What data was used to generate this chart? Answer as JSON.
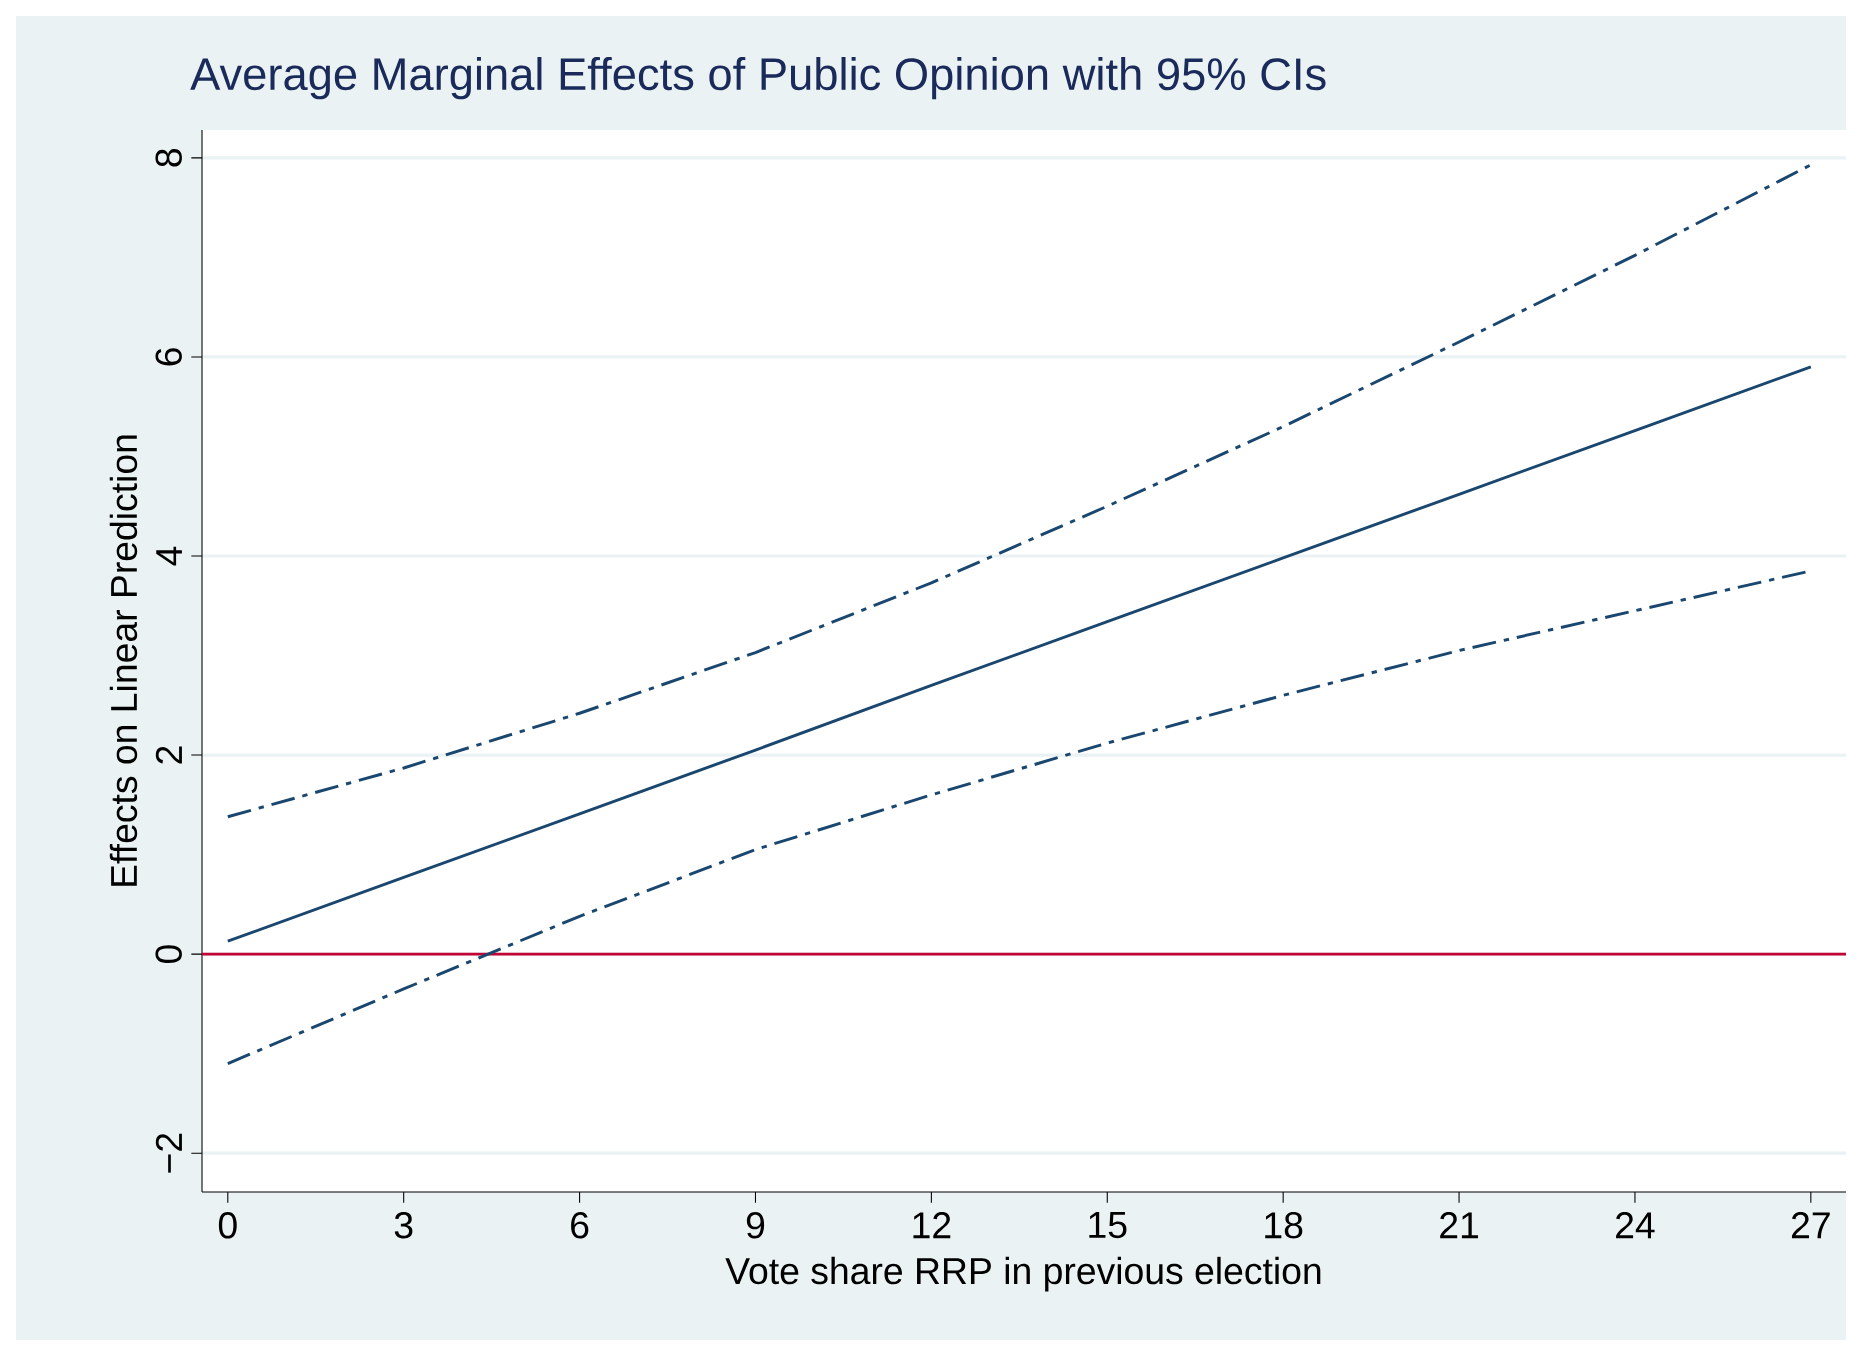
{
  "chart_data": {
    "type": "line",
    "title": "Average Marginal Effects of Public Opinion with 95% CIs",
    "xlabel": "Vote share RRP in previous election",
    "ylabel": "Effects on Linear Prediction",
    "x": [
      0,
      3,
      6,
      9,
      12,
      15,
      18,
      21,
      24,
      27
    ],
    "series": [
      {
        "color": "#1a476f",
        "line_style": "solid",
        "values": [
          0.13,
          0.77,
          1.41,
          2.05,
          2.7,
          3.34,
          3.98,
          4.62,
          5.26,
          5.9
        ]
      },
      {
        "color": "#1a476f",
        "line_style": "dashdot",
        "values": [
          1.38,
          1.87,
          2.42,
          3.03,
          3.73,
          4.5,
          5.3,
          6.15,
          7.02,
          7.93
        ]
      },
      {
        "color": "#1a476f",
        "line_style": "dashdot",
        "values": [
          -1.1,
          -0.35,
          0.38,
          1.05,
          1.6,
          2.12,
          2.6,
          3.05,
          3.45,
          3.85
        ]
      }
    ],
    "xlim": [
      -0.44,
      27.6
    ],
    "ylim": [
      -2.39,
      8.28
    ],
    "xticks": [
      0,
      3,
      6,
      9,
      12,
      15,
      18,
      21,
      24,
      27
    ],
    "yticks": [
      {
        "value": -2,
        "label": "−2"
      },
      0,
      2,
      4,
      6,
      8
    ],
    "grid": "y",
    "marker": "none",
    "ref_lines": [
      {
        "axis": "y",
        "value": 0,
        "color": "#c10534"
      }
    ]
  }
}
